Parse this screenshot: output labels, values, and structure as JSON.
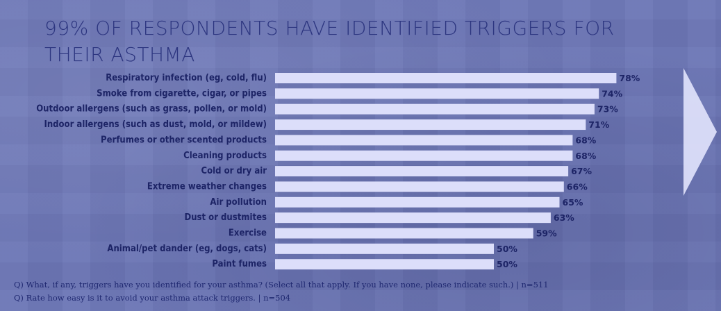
{
  "title": "99% OF RESPONDENTS HAVE IDENTIFIED TRIGGERS FOR THEIR ASTHMA",
  "footnotes": [
    "Q) What, if any, triggers have you identified for your asthma? (Select all that apply. If you have none, please indicate such.) | n=511",
    "Q) Rate how easy is it to avoid your asthma attack triggers. | n=504"
  ],
  "nav": {
    "icon": "chevron-right-icon"
  },
  "colors": {
    "background": "#6c76b6",
    "bar": "#dcdefa",
    "text": "#1d2466",
    "title": "#2d3680"
  },
  "chart_data": {
    "type": "bar",
    "orientation": "horizontal",
    "categories": [
      "Respiratory infection (eg, cold, flu)",
      "Smoke from cigarette, cigar, or pipes",
      "Outdoor allergens (such as grass, pollen, or mold)",
      "Indoor allergens (such as dust, mold, or mildew)",
      "Perfumes or other scented products",
      "Cleaning products",
      "Cold or dry air",
      "Extreme weather changes",
      "Air pollution",
      "Dust or dustmites",
      "Exercise",
      "Animal/pet dander (eg, dogs, cats)",
      "Paint fumes"
    ],
    "values": [
      78,
      74,
      73,
      71,
      68,
      68,
      67,
      66,
      65,
      63,
      59,
      50,
      50
    ],
    "value_labels": [
      "78%",
      "74%",
      "73%",
      "71%",
      "68%",
      "68%",
      "67%",
      "66%",
      "65%",
      "63%",
      "59%",
      "50%",
      "50%"
    ],
    "unit": "%",
    "xlim": [
      0,
      100
    ],
    "grid": false,
    "legend": "none"
  }
}
